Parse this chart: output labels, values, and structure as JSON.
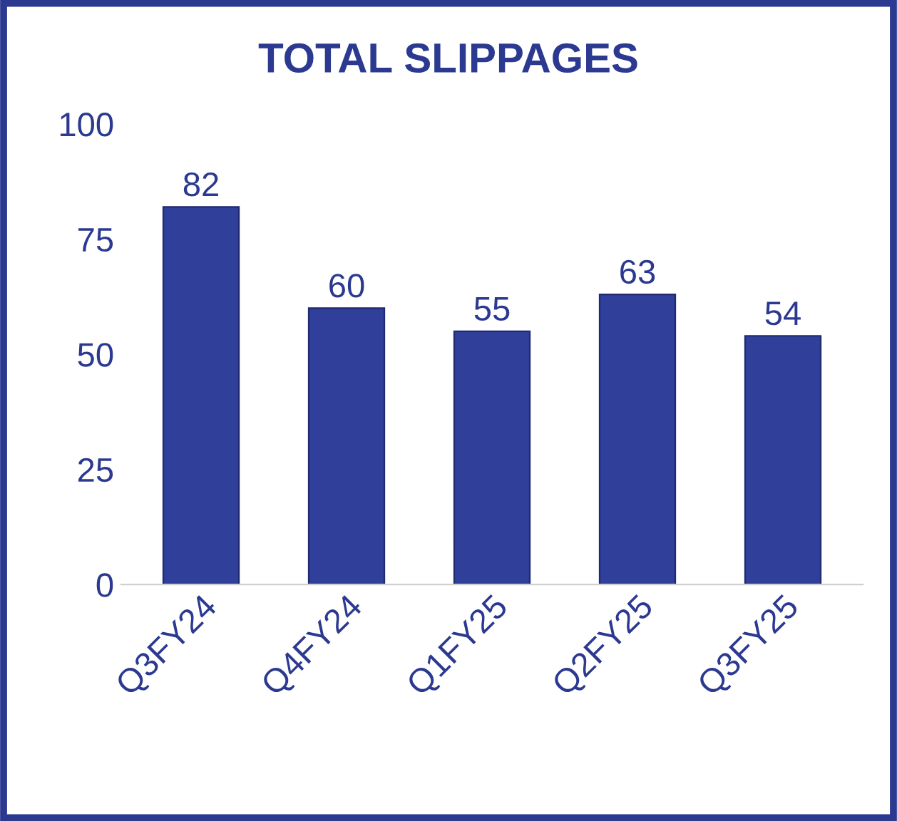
{
  "chart_data": {
    "type": "bar",
    "title": "TOTAL SLIPPAGES",
    "categories": [
      "Q3FY24",
      "Q4FY24",
      "Q1FY25",
      "Q2FY25",
      "Q3FY25"
    ],
    "values": [
      82,
      60,
      55,
      63,
      54
    ],
    "color": "#2f3f9a",
    "ylim": [
      0,
      100
    ],
    "yticks": [
      0,
      25,
      50,
      75,
      100
    ],
    "grid": false,
    "data_labels": true
  }
}
